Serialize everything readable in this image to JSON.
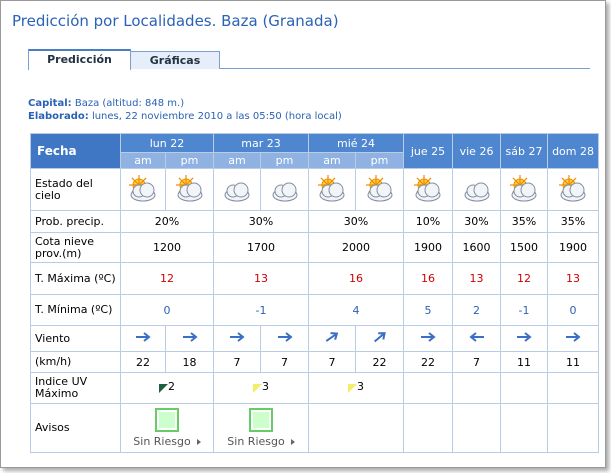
{
  "header": {
    "title": "Predicción por Localidades. Baza (Granada)"
  },
  "tabs": [
    "Predicción",
    "Gráficas"
  ],
  "info": {
    "capital_label": "Capital:",
    "capital": "Baza (altitud: 848 m.)",
    "elaborado_label": "Elaborado:",
    "elaborado": "lunes, 22 noviembre 2010 a las 05:50 (hora local)"
  },
  "table": {
    "fecha": "Fecha",
    "days": [
      {
        "name": "lun 22",
        "periods": [
          "am",
          "pm"
        ]
      },
      {
        "name": "mar 23",
        "periods": [
          "am",
          "pm"
        ]
      },
      {
        "name": "mié 24",
        "periods": [
          "am",
          "pm"
        ]
      },
      {
        "name": "jue 25"
      },
      {
        "name": "vie 26"
      },
      {
        "name": "sáb 27"
      },
      {
        "name": "dom 28"
      }
    ],
    "rows": [
      {
        "label": "Estado del cielo"
      },
      {
        "label": "Prob. precip.",
        "cells": [
          "20%",
          "30%",
          "30%",
          "10%",
          "30%",
          "35%",
          "35%"
        ]
      },
      {
        "label": "Cota nieve prov.(m)",
        "cells": [
          1200,
          1700,
          2000,
          1900,
          1600,
          1500,
          1900
        ]
      },
      {
        "label": "T. Máxima (ºC)",
        "cells": [
          12,
          13,
          16,
          16,
          13,
          12,
          13
        ]
      },
      {
        "label": "T. Mínima (ºC)",
        "cells": [
          0,
          -1,
          4,
          5,
          2,
          -1,
          0
        ]
      },
      {
        "label": "Viento"
      },
      {
        "label": "(km/h)",
        "cells": [
          [
            22,
            18
          ],
          [
            7,
            7
          ],
          [
            7,
            22
          ],
          22,
          7,
          11,
          11
        ]
      },
      {
        "label": "Indice UV Máximo",
        "cells": [
          2,
          3,
          3,
          null,
          null,
          null,
          null
        ]
      },
      {
        "label": "Avisos",
        "cells": [
          "Sin Riesgo",
          "Sin Riesgo",
          null,
          null,
          null,
          null,
          null
        ]
      }
    ]
  }
}
